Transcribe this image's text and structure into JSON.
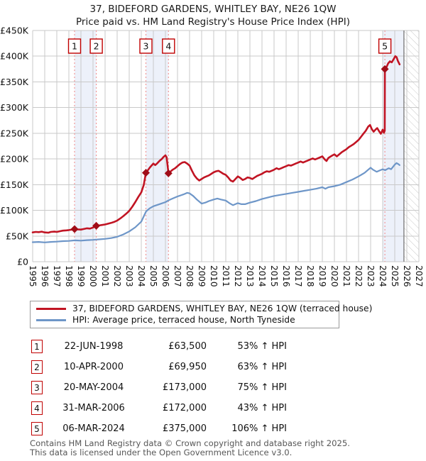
{
  "chart_data": {
    "type": "line",
    "title": "37, BIDEFORD GARDENS, WHITLEY BAY, NE26 1QW",
    "subtitle": "Price paid vs. HM Land Registry's House Price Index (HPI)",
    "xlim": [
      1995,
      2027
    ],
    "ylim_gbp": [
      0,
      450000
    ],
    "units": "series point values are GBP thousands",
    "grid": true,
    "legend_position": "bottom-box",
    "y_ticks": [
      {
        "value_k": 0,
        "label": "£0"
      },
      {
        "value_k": 50,
        "label": "£50K"
      },
      {
        "value_k": 100,
        "label": "£100K"
      },
      {
        "value_k": 150,
        "label": "£150K"
      },
      {
        "value_k": 200,
        "label": "£200K"
      },
      {
        "value_k": 250,
        "label": "£250K"
      },
      {
        "value_k": 300,
        "label": "£300K"
      },
      {
        "value_k": 350,
        "label": "£350K"
      },
      {
        "value_k": 400,
        "label": "£400K"
      },
      {
        "value_k": 450,
        "label": "£450K"
      }
    ],
    "x_ticks": [
      1995,
      1996,
      1997,
      1998,
      1999,
      2000,
      2001,
      2002,
      2003,
      2004,
      2005,
      2006,
      2007,
      2008,
      2009,
      2010,
      2011,
      2012,
      2013,
      2014,
      2015,
      2016,
      2017,
      2018,
      2019,
      2020,
      2021,
      2022,
      2023,
      2024,
      2025,
      2026,
      2027
    ],
    "series": [
      {
        "name": "37, BIDEFORD GARDENS, WHITLEY BAY, NE26 1QW (terraced house)",
        "color": "#c11423",
        "points": [
          [
            1995.0,
            57
          ],
          [
            1995.25,
            58
          ],
          [
            1995.5,
            57.5
          ],
          [
            1995.75,
            58.5
          ],
          [
            1996.0,
            57
          ],
          [
            1996.3,
            56.5
          ],
          [
            1996.5,
            58
          ],
          [
            1996.8,
            58.5
          ],
          [
            1997.0,
            58
          ],
          [
            1997.3,
            59.5
          ],
          [
            1997.5,
            60.5
          ],
          [
            1997.8,
            61
          ],
          [
            1998.0,
            61.5
          ],
          [
            1998.25,
            62.5
          ],
          [
            1998.47,
            63.5
          ],
          [
            1998.7,
            63
          ],
          [
            1999.0,
            62.5
          ],
          [
            1999.3,
            64
          ],
          [
            1999.5,
            65
          ],
          [
            1999.75,
            64.5
          ],
          [
            2000.0,
            66.5
          ],
          [
            2000.27,
            69.95
          ],
          [
            2000.5,
            70.5
          ],
          [
            2000.75,
            71.5
          ],
          [
            2001.0,
            72.5
          ],
          [
            2001.25,
            74
          ],
          [
            2001.5,
            75.5
          ],
          [
            2001.75,
            77.5
          ],
          [
            2002.0,
            80
          ],
          [
            2002.25,
            84
          ],
          [
            2002.5,
            88.5
          ],
          [
            2002.75,
            93.5
          ],
          [
            2003.0,
            99
          ],
          [
            2003.25,
            107
          ],
          [
            2003.5,
            116
          ],
          [
            2003.75,
            126
          ],
          [
            2004.0,
            135
          ],
          [
            2004.2,
            149
          ],
          [
            2004.38,
            173
          ],
          [
            2004.55,
            178
          ],
          [
            2004.7,
            183
          ],
          [
            2004.85,
            187
          ],
          [
            2005.0,
            191
          ],
          [
            2005.15,
            188
          ],
          [
            2005.3,
            191
          ],
          [
            2005.5,
            196
          ],
          [
            2005.7,
            200
          ],
          [
            2005.85,
            204
          ],
          [
            2006.0,
            207
          ],
          [
            2006.1,
            203
          ],
          [
            2006.25,
            172
          ],
          [
            2006.4,
            175
          ],
          [
            2006.6,
            179
          ],
          [
            2006.8,
            182
          ],
          [
            2007.0,
            186
          ],
          [
            2007.2,
            190
          ],
          [
            2007.4,
            193
          ],
          [
            2007.6,
            194
          ],
          [
            2007.8,
            191
          ],
          [
            2008.0,
            187
          ],
          [
            2008.2,
            177
          ],
          [
            2008.4,
            168
          ],
          [
            2008.6,
            162
          ],
          [
            2008.8,
            158
          ],
          [
            2009.0,
            161
          ],
          [
            2009.2,
            164
          ],
          [
            2009.4,
            166
          ],
          [
            2009.6,
            168
          ],
          [
            2009.8,
            171
          ],
          [
            2010.0,
            174
          ],
          [
            2010.2,
            176
          ],
          [
            2010.4,
            177
          ],
          [
            2010.6,
            174
          ],
          [
            2010.8,
            171
          ],
          [
            2011.0,
            169
          ],
          [
            2011.2,
            164
          ],
          [
            2011.4,
            158
          ],
          [
            2011.6,
            156
          ],
          [
            2011.8,
            161
          ],
          [
            2012.0,
            166
          ],
          [
            2012.2,
            163
          ],
          [
            2012.4,
            159
          ],
          [
            2012.6,
            161
          ],
          [
            2012.8,
            164
          ],
          [
            2013.0,
            163
          ],
          [
            2013.2,
            161
          ],
          [
            2013.4,
            164
          ],
          [
            2013.6,
            167
          ],
          [
            2013.8,
            169
          ],
          [
            2014.0,
            171
          ],
          [
            2014.2,
            174
          ],
          [
            2014.4,
            176
          ],
          [
            2014.6,
            175
          ],
          [
            2014.8,
            177
          ],
          [
            2015.0,
            179
          ],
          [
            2015.2,
            182
          ],
          [
            2015.4,
            180
          ],
          [
            2015.6,
            182
          ],
          [
            2015.8,
            184
          ],
          [
            2016.0,
            186
          ],
          [
            2016.2,
            188
          ],
          [
            2016.4,
            187
          ],
          [
            2016.6,
            189
          ],
          [
            2016.8,
            191
          ],
          [
            2017.0,
            193
          ],
          [
            2017.2,
            195
          ],
          [
            2017.4,
            193
          ],
          [
            2017.6,
            195
          ],
          [
            2017.8,
            197
          ],
          [
            2018.0,
            199
          ],
          [
            2018.2,
            201
          ],
          [
            2018.4,
            199
          ],
          [
            2018.6,
            201
          ],
          [
            2018.8,
            203
          ],
          [
            2019.0,
            205
          ],
          [
            2019.2,
            199
          ],
          [
            2019.35,
            196
          ],
          [
            2019.5,
            202
          ],
          [
            2019.7,
            205
          ],
          [
            2019.85,
            207
          ],
          [
            2020.0,
            209
          ],
          [
            2020.2,
            205
          ],
          [
            2020.4,
            209
          ],
          [
            2020.6,
            213
          ],
          [
            2020.8,
            216
          ],
          [
            2021.0,
            219
          ],
          [
            2021.2,
            223
          ],
          [
            2021.4,
            226
          ],
          [
            2021.6,
            229
          ],
          [
            2021.8,
            233
          ],
          [
            2022.0,
            237
          ],
          [
            2022.2,
            243
          ],
          [
            2022.4,
            249
          ],
          [
            2022.6,
            255
          ],
          [
            2022.8,
            263
          ],
          [
            2022.95,
            266
          ],
          [
            2023.1,
            258
          ],
          [
            2023.25,
            253
          ],
          [
            2023.4,
            257
          ],
          [
            2023.55,
            260
          ],
          [
            2023.7,
            254
          ],
          [
            2023.85,
            249
          ],
          [
            2024.0,
            257
          ],
          [
            2024.1,
            251
          ],
          [
            2024.17,
            255
          ],
          [
            2024.18,
            375
          ],
          [
            2024.3,
            378
          ],
          [
            2024.45,
            386
          ],
          [
            2024.6,
            390
          ],
          [
            2024.75,
            388
          ],
          [
            2024.9,
            394
          ],
          [
            2025.05,
            400
          ],
          [
            2025.15,
            398
          ],
          [
            2025.25,
            391
          ],
          [
            2025.4,
            384
          ]
        ]
      },
      {
        "name": "HPI: Average price, terraced house, North Tyneside",
        "color": "#6e96c8",
        "points": [
          [
            1995.0,
            38
          ],
          [
            1995.5,
            38.5
          ],
          [
            1996.0,
            37.5
          ],
          [
            1996.5,
            38.5
          ],
          [
            1997.0,
            39
          ],
          [
            1997.5,
            40
          ],
          [
            1998.0,
            40.5
          ],
          [
            1998.5,
            41.5
          ],
          [
            1999.0,
            41
          ],
          [
            1999.5,
            42
          ],
          [
            2000.0,
            42.5
          ],
          [
            2000.5,
            43.5
          ],
          [
            2001.0,
            44.5
          ],
          [
            2001.5,
            46
          ],
          [
            2002.0,
            48.5
          ],
          [
            2002.5,
            53
          ],
          [
            2003.0,
            59
          ],
          [
            2003.5,
            67
          ],
          [
            2004.0,
            78
          ],
          [
            2004.4,
            98
          ],
          [
            2004.7,
            104
          ],
          [
            2005.0,
            108
          ],
          [
            2005.5,
            112
          ],
          [
            2006.0,
            116
          ],
          [
            2006.3,
            120
          ],
          [
            2006.6,
            123
          ],
          [
            2007.0,
            127
          ],
          [
            2007.5,
            131
          ],
          [
            2007.8,
            134
          ],
          [
            2008.0,
            133
          ],
          [
            2008.3,
            128
          ],
          [
            2008.6,
            121
          ],
          [
            2009.0,
            113
          ],
          [
            2009.3,
            115
          ],
          [
            2009.6,
            118
          ],
          [
            2010.0,
            121
          ],
          [
            2010.3,
            123
          ],
          [
            2010.6,
            121
          ],
          [
            2011.0,
            119
          ],
          [
            2011.3,
            114
          ],
          [
            2011.6,
            110
          ],
          [
            2012.0,
            114
          ],
          [
            2012.3,
            112
          ],
          [
            2012.6,
            112
          ],
          [
            2013.0,
            115
          ],
          [
            2013.5,
            118
          ],
          [
            2014.0,
            122
          ],
          [
            2014.5,
            125
          ],
          [
            2015.0,
            128
          ],
          [
            2015.5,
            130
          ],
          [
            2016.0,
            132
          ],
          [
            2016.5,
            134
          ],
          [
            2017.0,
            136
          ],
          [
            2017.5,
            138
          ],
          [
            2018.0,
            140
          ],
          [
            2018.5,
            142
          ],
          [
            2019.0,
            145
          ],
          [
            2019.25,
            142
          ],
          [
            2019.5,
            145
          ],
          [
            2020.0,
            147
          ],
          [
            2020.5,
            150
          ],
          [
            2021.0,
            155
          ],
          [
            2021.5,
            160
          ],
          [
            2022.0,
            166
          ],
          [
            2022.5,
            173
          ],
          [
            2022.8,
            179
          ],
          [
            2023.0,
            183
          ],
          [
            2023.2,
            179
          ],
          [
            2023.5,
            175
          ],
          [
            2023.8,
            178
          ],
          [
            2024.0,
            180
          ],
          [
            2024.2,
            178
          ],
          [
            2024.5,
            182
          ],
          [
            2024.7,
            180
          ],
          [
            2025.0,
            189
          ],
          [
            2025.15,
            192
          ],
          [
            2025.3,
            190
          ],
          [
            2025.4,
            188
          ]
        ]
      }
    ],
    "sales": [
      {
        "label": "1",
        "x": 1998.47,
        "price_k": 63.5,
        "date": "22-JUN-1998"
      },
      {
        "label": "2",
        "x": 2000.27,
        "price_k": 69.95,
        "date": "10-APR-2000"
      },
      {
        "label": "3",
        "x": 2004.38,
        "price_k": 173,
        "date": "20-MAY-2004"
      },
      {
        "label": "4",
        "x": 2006.25,
        "price_k": 172,
        "date": "31-MAR-2006"
      },
      {
        "label": "5",
        "x": 2024.18,
        "price_k": 375,
        "date": "06-MAR-2024"
      }
    ],
    "highlight_bands": [
      [
        1998.47,
        2000.27
      ],
      [
        2004.38,
        2006.25
      ],
      [
        2024.0,
        2025.76
      ]
    ],
    "future_hatch": [
      2025.76,
      2027
    ],
    "colors": {
      "price_line": "#c11423",
      "sale_marker": "#a00d18",
      "hpi_line": "#6e96c8",
      "dashed_sale_line": "#f19999",
      "band_fill": "#edf1fa",
      "grid": "#c9c9c9",
      "hatch_line": "#c9c9c9",
      "data_end_line": "#808080"
    }
  },
  "sales_table": {
    "rows": [
      {
        "num": "1",
        "date": "22-JUN-1998",
        "price": "£63,500",
        "hpi_diff": "53% ↑ HPI"
      },
      {
        "num": "2",
        "date": "10-APR-2000",
        "price": "£69,950",
        "hpi_diff": "63% ↑ HPI"
      },
      {
        "num": "3",
        "date": "20-MAY-2004",
        "price": "£173,000",
        "hpi_diff": "75% ↑ HPI"
      },
      {
        "num": "4",
        "date": "31-MAR-2006",
        "price": "£172,000",
        "hpi_diff": "43% ↑ HPI"
      },
      {
        "num": "5",
        "date": "06-MAR-2024",
        "price": "£375,000",
        "hpi_diff": "106% ↑ HPI"
      }
    ]
  },
  "footer": {
    "line1": "Contains HM Land Registry data © Crown copyright and database right 2025.",
    "line2": "This data is licensed under the Open Government Licence v3.0."
  }
}
